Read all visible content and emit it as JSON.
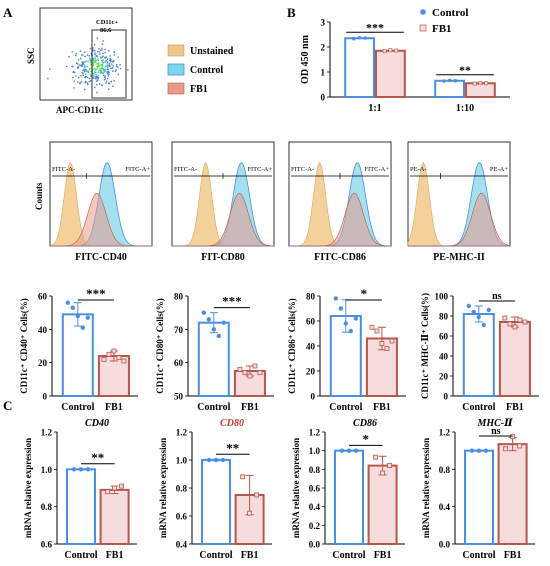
{
  "panel_labels": [
    "A",
    "B",
    "C"
  ],
  "colors": {
    "control": "#4a90e2",
    "control_fill": "#ffffff",
    "fb1": "#b5574a",
    "fb1_fill": "#f6dcdc",
    "unstained": "#f2c88a",
    "control_hist": "#7fd3ea",
    "fb1_hist": "#e79a8c",
    "dot": "#4a7ec7"
  },
  "flow": {
    "ssc_label": "SSC",
    "apc_label": "APC-CD11c",
    "gate_label": "CD11c+",
    "gate_value": "86.6",
    "legend": [
      "Unstained",
      "Control",
      "FB1"
    ],
    "counts_label": "Counts",
    "histograms": [
      {
        "xlabel": "FITC-CD40",
        "neg": "FITC-A-",
        "pos": "FITC-A+"
      },
      {
        "xlabel": "FIT-CD80",
        "neg": "FITC-A-",
        "pos": "FITC-A+"
      },
      {
        "xlabel": "FITC-CD86",
        "neg": "FITC-A-",
        "pos": "FITC-A+"
      },
      {
        "xlabel": "PE-MHC-II",
        "neg": "PE-A-",
        "pos": "PE-A+"
      }
    ]
  },
  "chart_data": [
    {
      "id": "B",
      "type": "bar",
      "categories": [
        "1:1",
        "1:10"
      ],
      "series": [
        {
          "name": "Control",
          "values": [
            2.35,
            0.65
          ],
          "points": [
            [
              2.33,
              2.37,
              2.36
            ],
            [
              0.64,
              0.66,
              0.65
            ]
          ]
        },
        {
          "name": "FB1",
          "values": [
            1.85,
            0.55
          ],
          "points": [
            [
              1.83,
              1.87,
              1.86
            ],
            [
              0.54,
              0.56,
              0.55
            ]
          ]
        }
      ],
      "ylabel": "OD 450 nm",
      "ylim": [
        0,
        3
      ],
      "yticks": [
        0,
        1,
        2,
        3
      ],
      "sig": [
        "***",
        "**"
      ],
      "legend": "top-right"
    },
    {
      "id": "A-CD40",
      "type": "bar",
      "categories": [
        "Control",
        "FB1"
      ],
      "values": [
        49,
        24
      ],
      "errors": [
        7,
        3
      ],
      "points": [
        [
          56,
          53,
          48,
          41,
          47
        ],
        [
          22,
          25,
          27,
          23,
          21
        ]
      ],
      "ylabel": "CD11c⁺ CD40⁺ Cells(%)",
      "ylim": [
        0,
        60
      ],
      "yticks": [
        0,
        20,
        40,
        60
      ],
      "sig": "***"
    },
    {
      "id": "A-CD80",
      "type": "bar",
      "categories": [
        "Control",
        "FB1"
      ],
      "values": [
        72,
        57.5
      ],
      "errors": [
        3,
        1.5
      ],
      "points": [
        [
          75,
          73,
          70,
          68,
          72
        ],
        [
          58,
          57,
          56,
          59,
          57
        ]
      ],
      "ylabel": "CD11c⁺ CD80⁺ Cells(%)",
      "ylim": [
        50,
        80
      ],
      "yticks": [
        50,
        60,
        70,
        80
      ],
      "sig": "***"
    },
    {
      "id": "A-CD86",
      "type": "bar",
      "categories": [
        "Control",
        "FB1"
      ],
      "values": [
        64,
        46
      ],
      "errors": [
        13,
        9
      ],
      "points": [
        [
          78,
          70,
          58,
          52,
          62
        ],
        [
          55,
          52,
          42,
          38,
          44
        ]
      ],
      "ylabel": "CD11c⁺ CD86⁺ Cells(%)",
      "ylim": [
        0,
        80
      ],
      "yticks": [
        0,
        20,
        40,
        60,
        80
      ],
      "sig": "*"
    },
    {
      "id": "A-MHCII",
      "type": "bar",
      "categories": [
        "Control",
        "FB1"
      ],
      "values": [
        82,
        74
      ],
      "errors": [
        8,
        5
      ],
      "points": [
        [
          90,
          84,
          79,
          71,
          86
        ],
        [
          78,
          72,
          69,
          76,
          74
        ]
      ],
      "ylabel": "CD11c⁺ MHC-Ⅱ⁺ Cells(%)",
      "ylim": [
        0,
        100
      ],
      "yticks": [
        0,
        20,
        40,
        60,
        80,
        100
      ],
      "sig": "ns"
    },
    {
      "id": "C-CD40",
      "type": "bar",
      "title": "CD40",
      "categories": [
        "Control",
        "FB1"
      ],
      "values": [
        1.0,
        0.89
      ],
      "errors": [
        0.003,
        0.02
      ],
      "points": [
        [
          1.0,
          1.0,
          1.0
        ],
        [
          0.88,
          0.9,
          0.91
        ]
      ],
      "ylabel": "mRNA relative expression",
      "ylim": [
        0.6,
        1.2
      ],
      "yticks": [
        0.6,
        0.8,
        1.0,
        1.2
      ],
      "sig": "**"
    },
    {
      "id": "C-CD80",
      "type": "bar",
      "title": "CD80",
      "categories": [
        "Control",
        "FB1"
      ],
      "values": [
        1.0,
        0.75
      ],
      "errors": [
        0.005,
        0.14
      ],
      "points": [
        [
          1.0,
          1.0,
          1.0
        ],
        [
          0.88,
          0.62,
          0.75
        ]
      ],
      "ylabel": "mRNA relative expression",
      "ylim": [
        0.4,
        1.2
      ],
      "yticks": [
        0.4,
        0.6,
        0.8,
        1.0,
        1.2
      ],
      "sig": "**"
    },
    {
      "id": "C-CD86",
      "type": "bar",
      "title": "CD86",
      "categories": [
        "Control",
        "FB1"
      ],
      "values": [
        1.0,
        0.84
      ],
      "errors": [
        0.003,
        0.1
      ],
      "points": [
        [
          1.0,
          1.0,
          1.0
        ],
        [
          0.93,
          0.76,
          0.84
        ]
      ],
      "ylabel": "mRNA relative expression",
      "ylim": [
        0,
        1.2
      ],
      "yticks": [
        0,
        0.2,
        0.4,
        0.6,
        0.8,
        1.0,
        1.2
      ],
      "sig": "*"
    },
    {
      "id": "C-MHCII",
      "type": "bar",
      "title": "MHC-Ⅱ",
      "categories": [
        "Control",
        "FB1"
      ],
      "values": [
        1.0,
        1.07
      ],
      "errors": [
        0.005,
        0.07
      ],
      "points": [
        [
          1.0,
          1.0,
          1.0
        ],
        [
          1.02,
          1.15,
          1.05
        ]
      ],
      "ylabel": "mRNA relative expression",
      "ylim": [
        0,
        1.2
      ],
      "yticks": [
        0,
        0.4,
        0.8,
        1.2
      ],
      "sig": "ns"
    }
  ]
}
